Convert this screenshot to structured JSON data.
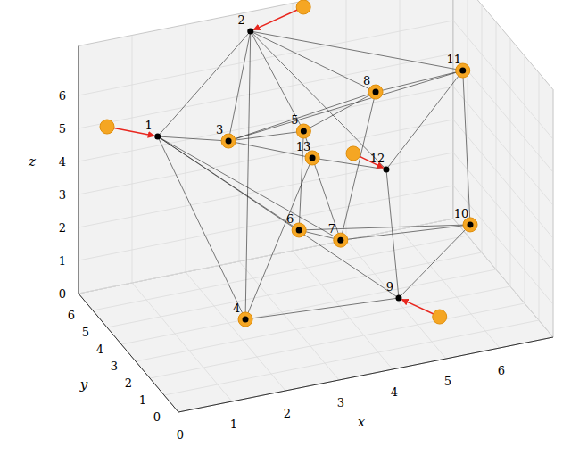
{
  "chart_data": {
    "type": "scatter3d",
    "xlabel": "x",
    "ylabel": "y",
    "zlabel": "z",
    "xlim": [
      0,
      7
    ],
    "ylim": [
      0,
      7
    ],
    "zlim": [
      0,
      7.5
    ],
    "xticks": [
      0,
      1,
      2,
      3,
      4,
      5,
      6
    ],
    "yticks": [
      0,
      1,
      2,
      3,
      4,
      5,
      6
    ],
    "zticks": [
      0,
      1,
      2,
      3,
      4,
      5,
      6
    ],
    "grid": true,
    "color": "#f5a623",
    "nodes": [
      {
        "label": "1",
        "x": 1.38,
        "y": 6.63,
        "z": 4.5,
        "marker": "dot"
      },
      {
        "label": "2",
        "x": 3.17,
        "y": 6.84,
        "z": 7,
        "marker": "dot"
      },
      {
        "label": "3",
        "x": 2.54,
        "y": 6.02,
        "z": 4.3,
        "marker": "ring"
      },
      {
        "label": "4",
        "x": 2.32,
        "y": 4.01,
        "z": 0,
        "marker": "ring"
      },
      {
        "label": "5",
        "x": 3.83,
        "y": 5.59,
        "z": 4.4,
        "marker": "ring"
      },
      {
        "label": "6",
        "x": 3.49,
        "y": 4.64,
        "z": 2,
        "marker": "ring"
      },
      {
        "label": "7",
        "x": 4.11,
        "y": 4.05,
        "z": 1.8,
        "marker": "ring"
      },
      {
        "label": "8",
        "x": 5.02,
        "y": 5.01,
        "z": 5.5,
        "marker": "ring"
      },
      {
        "label": "9",
        "x": 5.06,
        "y": 3.54,
        "z": 0,
        "marker": "dot"
      },
      {
        "label": "10",
        "x": 6.21,
        "y": 2.85,
        "z": 2.2,
        "marker": "ring"
      },
      {
        "label": "11",
        "x": 6.48,
        "y": 4.38,
        "z": 6,
        "marker": "ring"
      },
      {
        "label": "12",
        "x": 5.08,
        "y": 4.49,
        "z": 3.4,
        "marker": "dot"
      },
      {
        "label": "13",
        "x": 3.92,
        "y": 5.32,
        "z": 3.7,
        "marker": "ring"
      }
    ],
    "arrows": [
      {
        "to": "1",
        "x": 0.48,
        "y": 6.8,
        "z": 5
      },
      {
        "to": "2",
        "x": 4.12,
        "y": 6.69,
        "z": 7.5
      },
      {
        "to": "12",
        "x": 4.68,
        "y": 5.3,
        "z": 3.6
      },
      {
        "to": "9",
        "x": 5.46,
        "y": 2.18,
        "z": 0
      }
    ],
    "edges": [
      [
        "1",
        "2"
      ],
      [
        "1",
        "3"
      ],
      [
        "1",
        "4"
      ],
      [
        "1",
        "6"
      ],
      [
        "1",
        "7"
      ],
      [
        "1",
        "9"
      ],
      [
        "2",
        "3"
      ],
      [
        "2",
        "4"
      ],
      [
        "2",
        "5"
      ],
      [
        "2",
        "8"
      ],
      [
        "2",
        "11"
      ],
      [
        "2",
        "12"
      ],
      [
        "3",
        "5"
      ],
      [
        "3",
        "8"
      ],
      [
        "3",
        "11"
      ],
      [
        "3",
        "13"
      ],
      [
        "5",
        "8"
      ],
      [
        "5",
        "6"
      ],
      [
        "5",
        "13"
      ],
      [
        "8",
        "11"
      ],
      [
        "8",
        "7"
      ],
      [
        "11",
        "12"
      ],
      [
        "11",
        "10"
      ],
      [
        "12",
        "9"
      ],
      [
        "12",
        "13"
      ],
      [
        "6",
        "7"
      ],
      [
        "6",
        "10"
      ],
      [
        "4",
        "9"
      ],
      [
        "4",
        "13"
      ],
      [
        "7",
        "13"
      ],
      [
        "7",
        "10"
      ],
      [
        "9",
        "10"
      ]
    ]
  }
}
